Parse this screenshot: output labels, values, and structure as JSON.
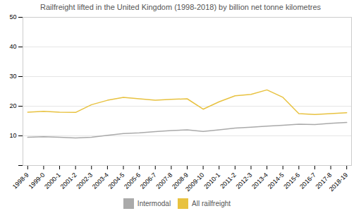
{
  "chart_data": {
    "type": "line",
    "title": "Railfreight lifted in the United Kingdom (1998-2018) by billion net tonne kilometres",
    "title_color": "#555555",
    "x": [
      1998,
      1999,
      2000,
      2001,
      2002,
      2003,
      2004,
      2005,
      2006,
      2007,
      2008,
      2009,
      2010,
      2011,
      2012,
      2013,
      2014,
      2015,
      2016,
      2017,
      2018
    ],
    "series": [
      {
        "name": "Intermodal",
        "color": "#aaaaaa",
        "values": [
          9.5,
          9.7,
          9.5,
          9.3,
          9.5,
          10.2,
          10.8,
          11.0,
          11.4,
          11.8,
          12.0,
          11.5,
          12.0,
          12.6,
          12.9,
          13.3,
          13.6,
          13.9,
          13.8,
          14.2,
          14.5
        ]
      },
      {
        "name": "All railfreight",
        "color": "#e8c240",
        "values": [
          18.0,
          18.3,
          18.0,
          17.9,
          20.5,
          22.0,
          23.0,
          22.5,
          22.0,
          22.3,
          22.5,
          19.0,
          21.5,
          23.5,
          24.0,
          25.5,
          23.0,
          17.5,
          17.2,
          17.5,
          17.8
        ]
      }
    ],
    "xlim": [
      1997.7,
      2018.3
    ],
    "xticks": [
      {
        "value": 1998,
        "label": "1998-9"
      },
      {
        "value": 1999,
        "label": "1999-0"
      },
      {
        "value": 2000,
        "label": "2000-1"
      },
      {
        "value": 2001,
        "label": "2001-2"
      },
      {
        "value": 2002,
        "label": "2002-3"
      },
      {
        "value": 2003,
        "label": "2003-4"
      },
      {
        "value": 2004,
        "label": "2004-5"
      },
      {
        "value": 2005,
        "label": "2005-6"
      },
      {
        "value": 2006,
        "label": "2006-7"
      },
      {
        "value": 2007,
        "label": "2007-8"
      },
      {
        "value": 2008,
        "label": "2008-9"
      },
      {
        "value": 2009,
        "label": "2009-10"
      },
      {
        "value": 2010,
        "label": "2010-1"
      },
      {
        "value": 2011,
        "label": "2011-2"
      },
      {
        "value": 2012,
        "label": "2012-3"
      },
      {
        "value": 2013,
        "label": "2013-4"
      },
      {
        "value": 2014,
        "label": "2014-5"
      },
      {
        "value": 2015,
        "label": "2015-6"
      },
      {
        "value": 2016,
        "label": "2016-7"
      },
      {
        "value": 2017,
        "label": "2017-8"
      },
      {
        "value": 2018,
        "label": "2018-19"
      }
    ],
    "ylim": [
      0,
      50
    ],
    "yticks": [
      {
        "value": 0,
        "label": ""
      },
      10,
      20,
      30,
      40,
      50
    ],
    "grid": true,
    "legend": "bottom"
  }
}
